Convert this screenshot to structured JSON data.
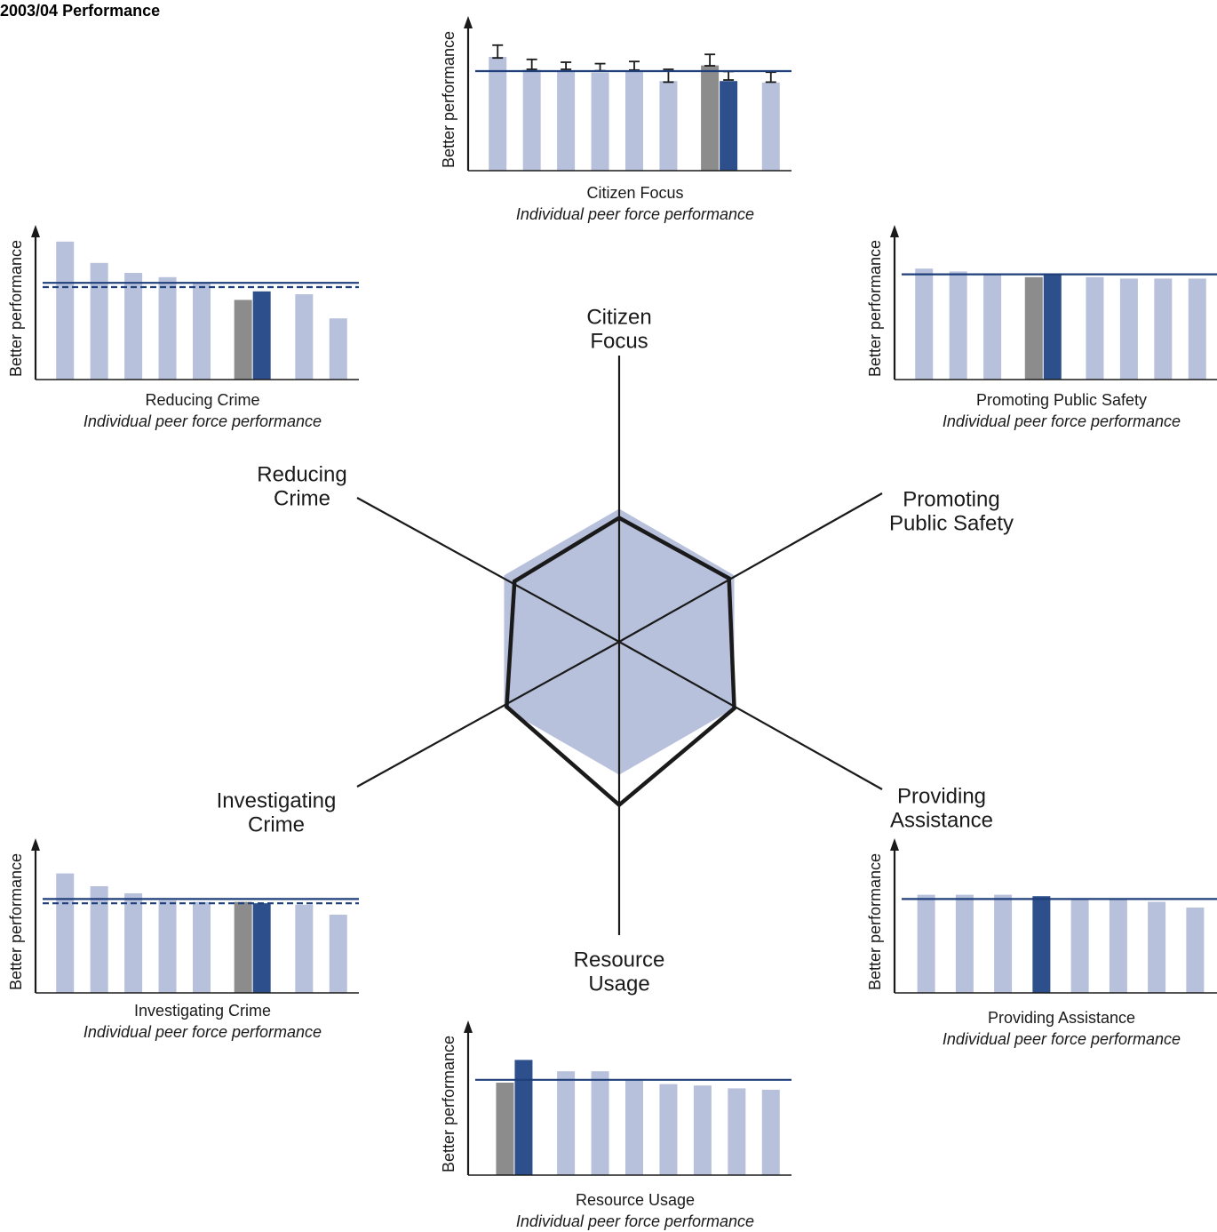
{
  "title": "2003/04 Performance",
  "colors": {
    "peer": "#b8c1dc",
    "force": "#2d4f8b",
    "grey": "#8c8c8c",
    "line": "#1f3f7a",
    "radar_fill": "#b8c1dc",
    "radar_outline": "#1a1a1a"
  },
  "chart_data": [
    {
      "type": "radar",
      "axes": [
        {
          "label_lines": [
            "Citizen",
            "Focus"
          ]
        },
        {
          "label_lines": [
            "Promoting",
            "Public Safety"
          ]
        },
        {
          "label_lines": [
            "Providing",
            "Assistance"
          ]
        },
        {
          "label_lines": [
            "Resource",
            "Usage"
          ]
        },
        {
          "label_lines": [
            "Investigating",
            "Crime"
          ]
        },
        {
          "label_lines": [
            "Reducing",
            "Crime"
          ]
        }
      ],
      "peer_average": [
        0.88,
        0.88,
        0.88,
        0.88,
        0.88,
        0.88
      ],
      "force": [
        0.82,
        0.84,
        0.88,
        1.08,
        0.86,
        0.8
      ]
    },
    {
      "type": "bar",
      "title": "Citizen Focus",
      "subtitle": "Individual peer force performance",
      "ylabel": "Better performance",
      "values": [
        0.8,
        0.71,
        0.7,
        0.69,
        0.7,
        0.63,
        0.74,
        0.63,
        0.62
      ],
      "colors": [
        "peer",
        "peer",
        "peer",
        "peer",
        "peer",
        "peer",
        "grey",
        "force",
        "peer"
      ],
      "errors": [
        0.09,
        0.07,
        0.05,
        0.05,
        0.06,
        0.09,
        0.08,
        0.06,
        0.07
      ],
      "average": 0.7,
      "dashed_average": null,
      "ylim": [
        0,
        1
      ]
    },
    {
      "type": "bar",
      "title": "Promoting Public Safety",
      "subtitle": "Individual peer force performance",
      "ylabel": "Better performance",
      "values": [
        0.78,
        0.76,
        0.74,
        0.72,
        0.74,
        0.72,
        0.71,
        0.71,
        0.71
      ],
      "colors": [
        "peer",
        "peer",
        "peer",
        "grey",
        "force",
        "peer",
        "peer",
        "peer",
        "peer"
      ],
      "average": 0.74,
      "dashed_average": null,
      "ylim": [
        0,
        1
      ]
    },
    {
      "type": "bar",
      "title": "Reducing Crime",
      "subtitle": "Individual peer force performance",
      "ylabel": "Better performance",
      "values": [
        0.97,
        0.82,
        0.75,
        0.72,
        0.68,
        0.56,
        0.62,
        0.6,
        0.43
      ],
      "colors": [
        "peer",
        "peer",
        "peer",
        "peer",
        "peer",
        "grey",
        "force",
        "peer",
        "peer"
      ],
      "average": 0.68,
      "dashed_average": 0.65,
      "ylim": [
        0,
        1
      ]
    },
    {
      "type": "bar",
      "title": "Investigating Crime",
      "subtitle": "Individual peer force performance",
      "ylabel": "Better performance",
      "values": [
        0.84,
        0.75,
        0.7,
        0.65,
        0.64,
        0.64,
        0.63,
        0.62,
        0.55
      ],
      "colors": [
        "peer",
        "peer",
        "peer",
        "peer",
        "peer",
        "grey",
        "force",
        "peer",
        "peer"
      ],
      "average": 0.66,
      "dashed_average": 0.63,
      "ylim": [
        0,
        1
      ]
    },
    {
      "type": "bar",
      "title": "Providing Assistance",
      "subtitle": "Individual peer force performance",
      "ylabel": "Better performance",
      "values": [
        0.69,
        0.69,
        0.69,
        0.68,
        0.66,
        0.66,
        0.64,
        0.6
      ],
      "colors": [
        "peer",
        "peer",
        "peer",
        "force",
        "peer",
        "peer",
        "peer",
        "peer"
      ],
      "average": 0.66,
      "dashed_average": null,
      "ylim": [
        0,
        1
      ]
    },
    {
      "type": "bar",
      "title": "Resource Usage",
      "subtitle": "Individual peer force performance",
      "ylabel": "Better performance",
      "values": [
        0.65,
        0.81,
        0.73,
        0.73,
        0.67,
        0.64,
        0.63,
        0.61,
        0.6
      ],
      "colors": [
        "grey",
        "force",
        "peer",
        "peer",
        "peer",
        "peer",
        "peer",
        "peer",
        "peer"
      ],
      "average": 0.67,
      "dashed_average": null,
      "ylim": [
        0,
        1
      ]
    }
  ]
}
